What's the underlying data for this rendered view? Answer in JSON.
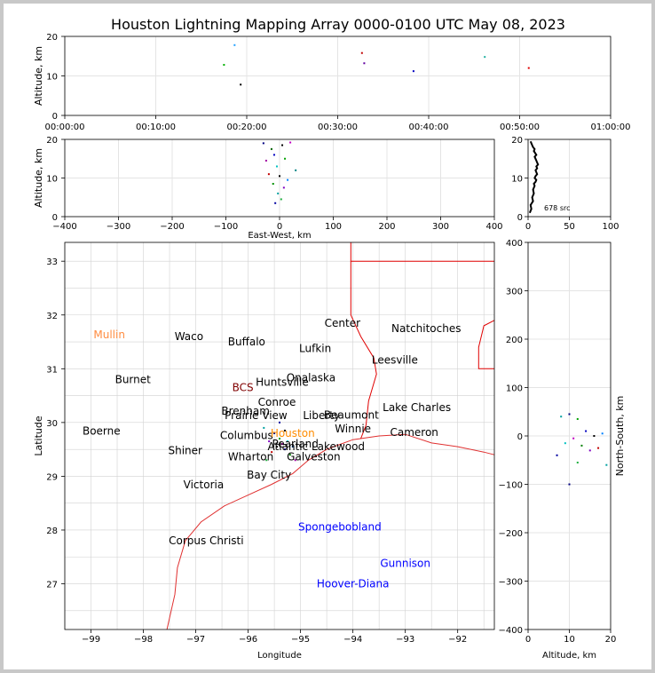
{
  "title": "Houston Lightning Mapping Array 0000-0100 UTC May 08, 2023",
  "chart_data": [
    {
      "type": "scatter",
      "panel": "time-altitude",
      "xlabel": "",
      "ylabel": "Altitude, km",
      "xlim": [
        "00:00:00",
        "01:00:00"
      ],
      "ylim": [
        0,
        20
      ],
      "xticks": [
        "00:00:00",
        "00:10:00",
        "00:20:00",
        "00:30:00",
        "00:40:00",
        "00:50:00",
        "01:00:00"
      ],
      "yticks": [
        "0",
        "10",
        "20"
      ],
      "grid": true,
      "points": [
        {
          "x": "00:17:30",
          "y": 12.8,
          "color": "#00b000"
        },
        {
          "x": "00:18:40",
          "y": 17.8,
          "color": "#20a0ff"
        },
        {
          "x": "00:19:20",
          "y": 7.8,
          "color": "#000000"
        },
        {
          "x": "00:32:40",
          "y": 15.8,
          "color": "#c00000"
        },
        {
          "x": "00:32:55",
          "y": 13.2,
          "color": "#6000a0"
        },
        {
          "x": "00:38:20",
          "y": 11.2,
          "color": "#0000c0"
        },
        {
          "x": "00:46:10",
          "y": 14.8,
          "color": "#20b0a0"
        },
        {
          "x": "00:51:00",
          "y": 12.0,
          "color": "#e00000"
        }
      ]
    },
    {
      "type": "scatter",
      "panel": "east-west-altitude",
      "xlabel": "East-West, km",
      "ylabel": "Altitude, km",
      "xlim": [
        -400,
        400
      ],
      "ylim": [
        0,
        20
      ],
      "xticks": [
        "−400",
        "−300",
        "−200",
        "−100",
        "0",
        "100",
        "200",
        "300",
        "400"
      ],
      "yticks": [
        "0",
        "10",
        "20"
      ],
      "grid": true,
      "points": [
        {
          "x": -30,
          "y": 19.0,
          "color": "#000080"
        },
        {
          "x": -15,
          "y": 17.5,
          "color": "#006000"
        },
        {
          "x": 5,
          "y": 18.5,
          "color": "#000000"
        },
        {
          "x": 20,
          "y": 19.2,
          "color": "#c000c0"
        },
        {
          "x": -10,
          "y": 16.0,
          "color": "#0000c0"
        },
        {
          "x": 10,
          "y": 15.0,
          "color": "#00a000"
        },
        {
          "x": -25,
          "y": 14.5,
          "color": "#a000a0"
        },
        {
          "x": -5,
          "y": 13.0,
          "color": "#00c0c0"
        },
        {
          "x": 30,
          "y": 12.0,
          "color": "#008080"
        },
        {
          "x": -20,
          "y": 11.0,
          "color": "#c00000"
        },
        {
          "x": 0,
          "y": 10.5,
          "color": "#000000"
        },
        {
          "x": 15,
          "y": 9.5,
          "color": "#0080ff"
        },
        {
          "x": -12,
          "y": 8.5,
          "color": "#009000"
        },
        {
          "x": 8,
          "y": 7.5,
          "color": "#8000c0"
        },
        {
          "x": -3,
          "y": 6.0,
          "color": "#00a0a0"
        },
        {
          "x": 3,
          "y": 4.5,
          "color": "#20b040"
        },
        {
          "x": -8,
          "y": 3.5,
          "color": "#0000a0"
        }
      ]
    },
    {
      "type": "line",
      "panel": "altitude-histogram",
      "xlabel": "",
      "ylabel": "",
      "xlim": [
        0,
        100
      ],
      "ylim": [
        0,
        20
      ],
      "xticks": [
        "0",
        "50",
        "100"
      ],
      "yticks": [
        "0",
        "10",
        "20"
      ],
      "annotation": "678 src",
      "x": [
        2,
        4,
        3,
        6,
        5,
        7,
        6,
        8,
        7,
        9,
        10,
        8,
        9,
        11,
        10,
        9,
        11,
        10,
        12,
        11,
        10,
        9,
        8,
        10,
        7,
        8,
        6,
        5,
        3
      ],
      "y": [
        1,
        2,
        3,
        4,
        5,
        6,
        7,
        8,
        8.5,
        9,
        9.5,
        10,
        10.5,
        11,
        11.5,
        12,
        12.5,
        13,
        13.5,
        14,
        14.5,
        15,
        15.5,
        16,
        17,
        17.5,
        18,
        18.5,
        19.5
      ]
    },
    {
      "type": "map",
      "panel": "plan-view",
      "xlabel": "Longitude",
      "ylabel": "Latitude",
      "xlim": [
        -99.5,
        -91.3
      ],
      "ylim": [
        26.15,
        33.35
      ],
      "xticks": [
        -99,
        -98,
        -97,
        -96,
        -95,
        -94,
        -93,
        -92
      ],
      "yticks": [
        27,
        28,
        29,
        30,
        31,
        32,
        33
      ],
      "grid": true,
      "labels": [
        {
          "text": "Mullin",
          "lon": -98.65,
          "lat": 31.63,
          "color": "#ff8c40"
        },
        {
          "text": "Waco",
          "lon": -97.13,
          "lat": 31.6,
          "color": "#000000"
        },
        {
          "text": "Buffalo",
          "lon": -96.03,
          "lat": 31.5,
          "color": "#000000"
        },
        {
          "text": "Center",
          "lon": -94.2,
          "lat": 31.85,
          "color": "#000000"
        },
        {
          "text": "Natchitoches",
          "lon": -92.6,
          "lat": 31.75,
          "color": "#000000"
        },
        {
          "text": "Lufkin",
          "lon": -94.72,
          "lat": 31.38,
          "color": "#000000"
        },
        {
          "text": "Leesville",
          "lon": -93.2,
          "lat": 31.16,
          "color": "#000000"
        },
        {
          "text": "Burnet",
          "lon": -98.2,
          "lat": 30.8,
          "color": "#000000"
        },
        {
          "text": "BCS",
          "lon": -96.1,
          "lat": 30.65,
          "color": "#800000"
        },
        {
          "text": "Huntsville",
          "lon": -95.35,
          "lat": 30.75,
          "color": "#000000"
        },
        {
          "text": "Onalaska",
          "lon": -94.8,
          "lat": 30.83,
          "color": "#000000"
        },
        {
          "text": "Conroe",
          "lon": -95.45,
          "lat": 30.38,
          "color": "#000000"
        },
        {
          "text": "Brenham",
          "lon": -96.05,
          "lat": 30.21,
          "color": "#000000"
        },
        {
          "text": "Prairie View",
          "lon": -95.85,
          "lat": 30.13,
          "color": "#000000"
        },
        {
          "text": "Liberty",
          "lon": -94.6,
          "lat": 30.13,
          "color": "#000000"
        },
        {
          "text": "Beaumont",
          "lon": -94.03,
          "lat": 30.14,
          "color": "#000000"
        },
        {
          "text": "Lake Charles",
          "lon": -92.78,
          "lat": 30.28,
          "color": "#000000"
        },
        {
          "text": "Boerne",
          "lon": -98.8,
          "lat": 29.84,
          "color": "#000000"
        },
        {
          "text": "Columbus",
          "lon": -96.03,
          "lat": 29.76,
          "color": "#000000"
        },
        {
          "text": "Houston",
          "lon": -95.15,
          "lat": 29.8,
          "color": "#ff8c00"
        },
        {
          "text": "Winnie",
          "lon": -94.0,
          "lat": 29.88,
          "color": "#000000"
        },
        {
          "text": "Cameron",
          "lon": -92.83,
          "lat": 29.82,
          "color": "#000000"
        },
        {
          "text": "Pearland",
          "lon": -95.1,
          "lat": 29.6,
          "color": "#000000"
        },
        {
          "text": "Atlantic Lakewood",
          "lon": -94.7,
          "lat": 29.55,
          "color": "#000000"
        },
        {
          "text": "Shiner",
          "lon": -97.2,
          "lat": 29.48,
          "color": "#000000"
        },
        {
          "text": "Wharton",
          "lon": -95.95,
          "lat": 29.36,
          "color": "#000000"
        },
        {
          "text": "Galveston",
          "lon": -94.75,
          "lat": 29.36,
          "color": "#000000"
        },
        {
          "text": "Bay City",
          "lon": -95.6,
          "lat": 29.02,
          "color": "#000000"
        },
        {
          "text": "Victoria",
          "lon": -96.85,
          "lat": 28.84,
          "color": "#000000"
        },
        {
          "text": "Spongebobland",
          "lon": -94.25,
          "lat": 28.06,
          "color": "#0000ff"
        },
        {
          "text": "Corpus Christi",
          "lon": -96.8,
          "lat": 27.8,
          "color": "#000000"
        },
        {
          "text": "Gunnison",
          "lon": -93.0,
          "lat": 27.38,
          "color": "#0000ff"
        },
        {
          "text": "Hoover-Diana",
          "lon": -94.0,
          "lat": 27.0,
          "color": "#0000ff"
        }
      ],
      "points": [
        {
          "lon": -95.5,
          "lat": 29.8,
          "color": "#000080"
        },
        {
          "lon": -95.4,
          "lat": 29.7,
          "color": "#00a000"
        },
        {
          "lon": -95.35,
          "lat": 29.6,
          "color": "#c000c0"
        },
        {
          "lon": -95.45,
          "lat": 29.55,
          "color": "#000000"
        },
        {
          "lon": -95.3,
          "lat": 29.5,
          "color": "#0000c0"
        },
        {
          "lon": -95.25,
          "lat": 29.65,
          "color": "#00c0c0"
        },
        {
          "lon": -95.55,
          "lat": 29.45,
          "color": "#c00000"
        },
        {
          "lon": -95.2,
          "lat": 29.4,
          "color": "#008000"
        },
        {
          "lon": -95.6,
          "lat": 29.65,
          "color": "#8000c0"
        },
        {
          "lon": -95.15,
          "lat": 29.55,
          "color": "#0080ff"
        },
        {
          "lon": -95.7,
          "lat": 29.9,
          "color": "#00a0a0"
        },
        {
          "lon": -95.65,
          "lat": 29.3,
          "color": "#20b040"
        },
        {
          "lon": -95.1,
          "lat": 29.3,
          "color": "#a000a0"
        },
        {
          "lon": -95.4,
          "lat": 30.0,
          "color": "#0000a0"
        },
        {
          "lon": -95.3,
          "lat": 29.85,
          "color": "#000000"
        }
      ]
    },
    {
      "type": "scatter",
      "panel": "altitude-north-south",
      "xlabel": "Altitude, km",
      "ylabel": "North-South, km",
      "xlim": [
        0,
        20
      ],
      "ylim": [
        -400,
        400
      ],
      "xticks": [
        "0",
        "10",
        "20"
      ],
      "yticks": [
        "−400",
        "−300",
        "−200",
        "−100",
        "0",
        "100",
        "200",
        "300",
        "400"
      ],
      "grid": true,
      "points": [
        {
          "x": 8,
          "y": 40,
          "color": "#00a0a0"
        },
        {
          "x": 10,
          "y": 45,
          "color": "#000080"
        },
        {
          "x": 12,
          "y": 35,
          "color": "#00a000"
        },
        {
          "x": 14,
          "y": 10,
          "color": "#0000c0"
        },
        {
          "x": 16,
          "y": 0,
          "color": "#000000"
        },
        {
          "x": 18,
          "y": 5,
          "color": "#0080ff"
        },
        {
          "x": 11,
          "y": -5,
          "color": "#c000c0"
        },
        {
          "x": 9,
          "y": -15,
          "color": "#00c0c0"
        },
        {
          "x": 13,
          "y": -20,
          "color": "#008000"
        },
        {
          "x": 15,
          "y": -30,
          "color": "#8000c0"
        },
        {
          "x": 17,
          "y": -25,
          "color": "#c00000"
        },
        {
          "x": 7,
          "y": -40,
          "color": "#0000a0"
        },
        {
          "x": 12,
          "y": -55,
          "color": "#20b040"
        },
        {
          "x": 19,
          "y": -60,
          "color": "#00a0a0"
        },
        {
          "x": 10,
          "y": -100,
          "color": "#000080"
        }
      ]
    }
  ]
}
